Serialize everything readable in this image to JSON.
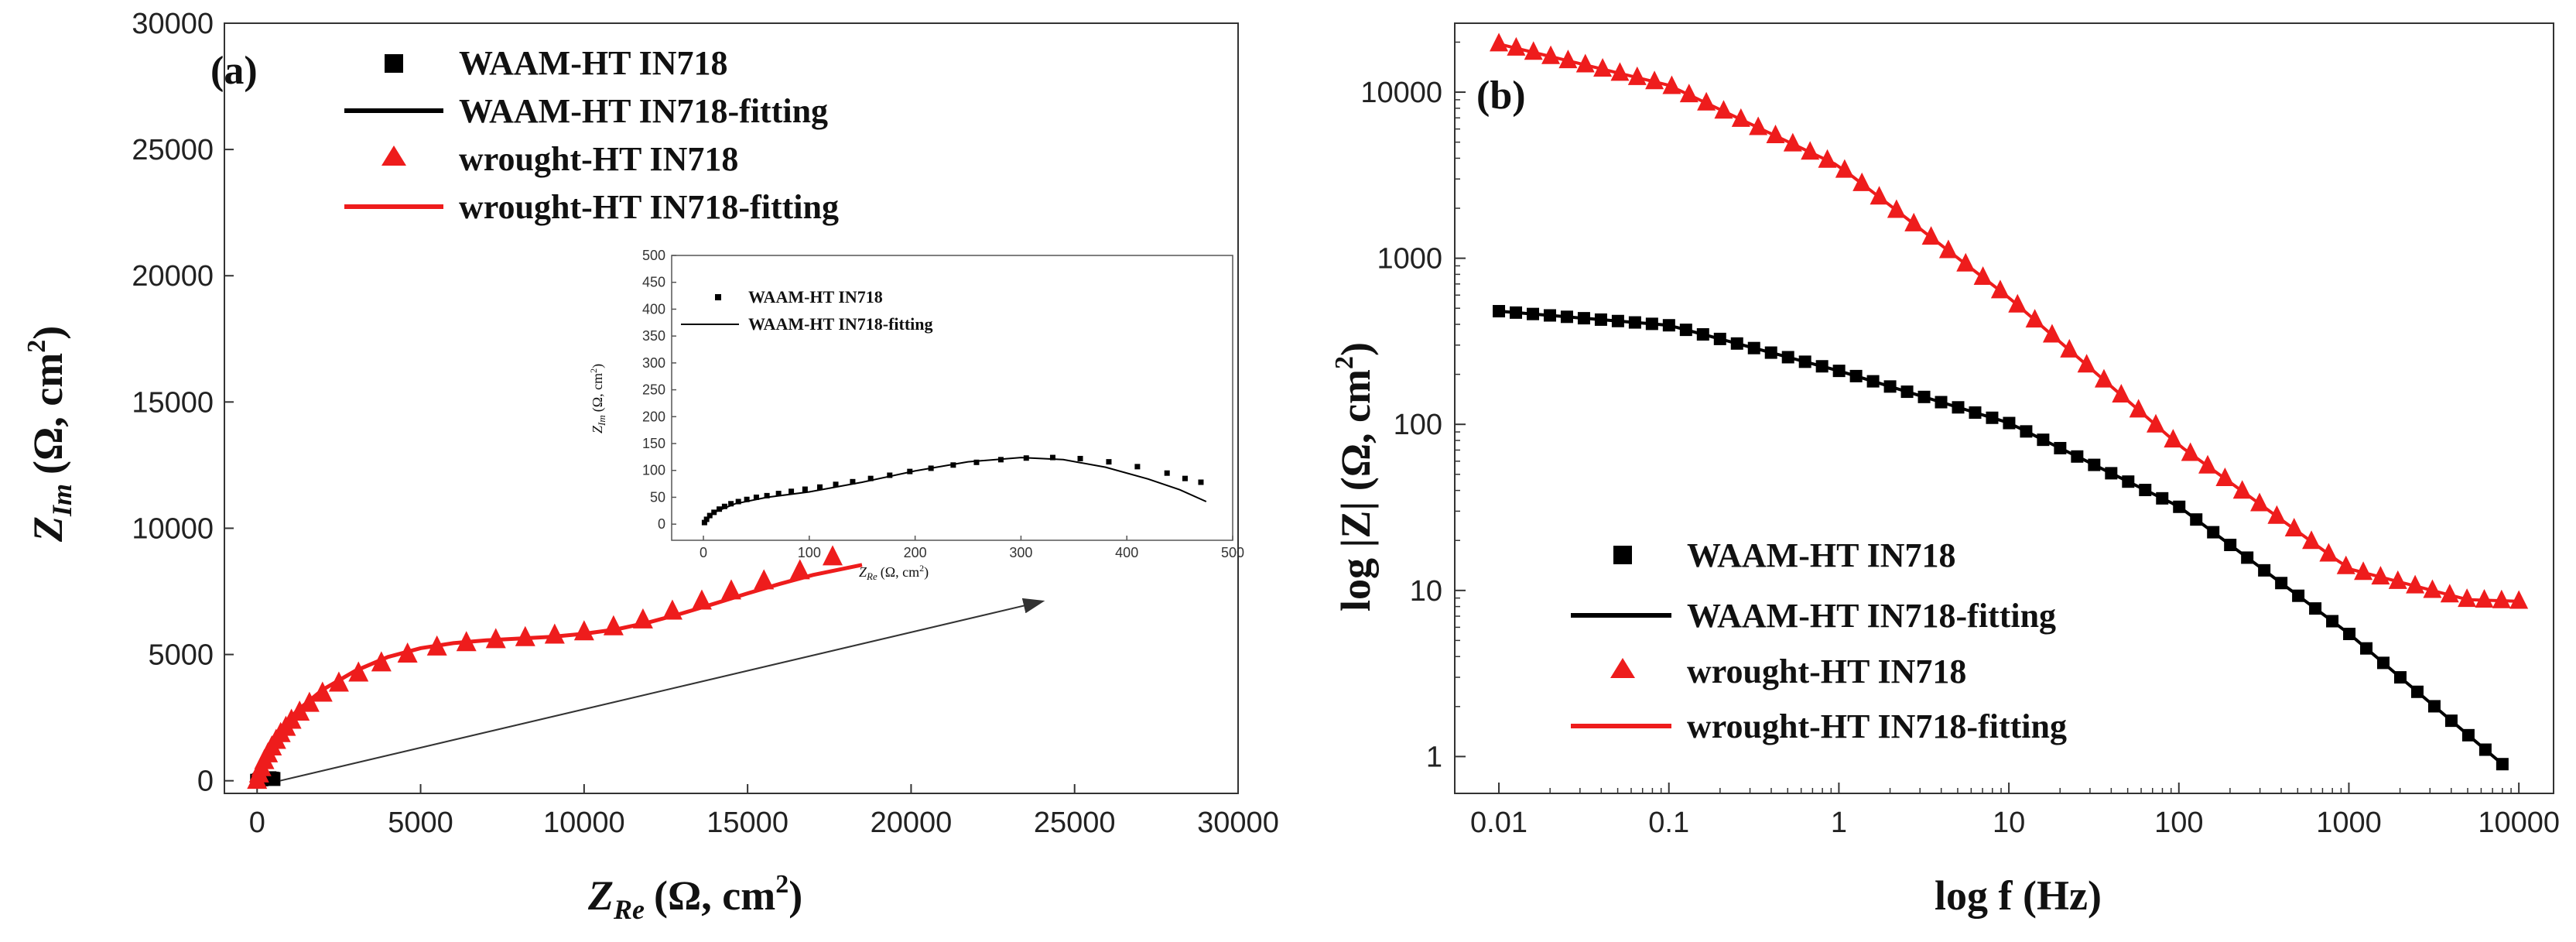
{
  "chart_data": [
    {
      "id": "a",
      "type": "scatter",
      "panel_label": "(a)",
      "xlabel_main": "Z",
      "xlabel_sub": "Re",
      "xlabel_units": "(Ω, cm",
      "ylabel_main": "Z",
      "ylabel_sub": "Im",
      "ylabel_units": "(Ω, cm",
      "unit_sup": "2",
      "unit_close": ")",
      "xlim": [
        -1000,
        30000
      ],
      "ylim": [
        -500,
        30000
      ],
      "xticks": [
        0,
        5000,
        10000,
        15000,
        20000,
        25000,
        30000
      ],
      "yticks": [
        0,
        5000,
        10000,
        15000,
        20000,
        25000,
        30000
      ],
      "legend": [
        "WAAM-HT IN718",
        "WAAM-HT IN718-fitting",
        "wrought-HT IN718",
        "wrought-HT IN718-fitting"
      ],
      "series": [
        {
          "name": "WAAM-HT IN718",
          "marker": "square",
          "x": [
            0,
            60,
            130,
            210,
            300,
            380,
            450,
            500
          ],
          "y": [
            0,
            30,
            55,
            80,
            95,
            100,
            85,
            70
          ]
        },
        {
          "name": "WAAM-HT IN718-fitting",
          "marker": "line",
          "x": [
            0,
            120,
            250,
            380,
            480
          ],
          "y": [
            0,
            70,
            110,
            100,
            40
          ]
        },
        {
          "name": "wrought-HT IN718",
          "marker": "triangle",
          "x": [
            0,
            60,
            130,
            220,
            330,
            450,
            580,
            720,
            880,
            1050,
            1300,
            1600,
            2000,
            2500,
            3100,
            3800,
            4600,
            5500,
            6400,
            7300,
            8200,
            9100,
            10000,
            10900,
            11800,
            12700,
            13600,
            14500,
            15500,
            16600,
            17600
          ],
          "y": [
            0,
            250,
            500,
            780,
            1050,
            1320,
            1580,
            1850,
            2100,
            2380,
            2700,
            3050,
            3450,
            3850,
            4250,
            4650,
            5000,
            5280,
            5450,
            5570,
            5650,
            5750,
            5880,
            6080,
            6350,
            6700,
            7100,
            7500,
            7900,
            8300,
            8850
          ]
        },
        {
          "name": "wrought-HT IN718-fitting",
          "marker": "line",
          "x": [
            0,
            300,
            700,
            1200,
            2000,
            3000,
            4000,
            5000,
            6000,
            7000,
            8000,
            9000,
            10000,
            11000,
            12000,
            13000,
            14000,
            15000,
            16000,
            17000,
            18500
          ],
          "y": [
            0,
            950,
            1900,
            2750,
            3600,
            4350,
            4900,
            5250,
            5450,
            5560,
            5630,
            5700,
            5820,
            6000,
            6280,
            6630,
            7020,
            7420,
            7800,
            8150,
            8550
          ]
        }
      ],
      "arrow": {
        "from": [
          700,
          0
        ],
        "to": [
          24000,
          7100
        ]
      },
      "inset": {
        "xlabel_main": "Z",
        "xlabel_sub": "Re",
        "xlabel_units": "(Ω, cm",
        "ylabel_main": "Z",
        "ylabel_sub": "Im",
        "ylabel_units": "(Ω, cm",
        "unit_sup": "2",
        "unit_close": ")",
        "xlim": [
          -30,
          500
        ],
        "ylim": [
          -30,
          500
        ],
        "xticks": [
          0,
          100,
          200,
          300,
          400,
          500
        ],
        "yticks": [
          0,
          50,
          100,
          150,
          200,
          250,
          300,
          350,
          400,
          450,
          500
        ],
        "legend": [
          "WAAM-HT IN718",
          "WAAM-HT IN718-fitting"
        ],
        "series": [
          {
            "name": "WAAM-HT IN718",
            "marker": "square",
            "x": [
              1,
              3,
              6,
              10,
              15,
              20,
              26,
              33,
              41,
              50,
              60,
              71,
              83,
              96,
              110,
              125,
              141,
              158,
              176,
              195,
              215,
              236,
              258,
              281,
              305,
              330,
              356,
              383,
              410,
              438,
              455,
              470
            ],
            "y": [
              3,
              9,
              16,
              22,
              28,
              33,
              38,
              42,
              46,
              50,
              53,
              57,
              61,
              65,
              69,
              74,
              79,
              85,
              91,
              98,
              104,
              110,
              115,
              120,
              123,
              124,
              122,
              116,
              107,
              95,
              85,
              78
            ]
          },
          {
            "name": "WAAM-HT IN718-fitting",
            "marker": "line",
            "x": [
              0,
              10,
              30,
              60,
              100,
              150,
              200,
              250,
              300,
              340,
              380,
              420,
              450,
              475
            ],
            "y": [
              0,
              22,
              38,
              50,
              60,
              78,
              99,
              116,
              124,
              120,
              106,
              84,
              64,
              42
            ]
          }
        ]
      }
    },
    {
      "id": "b",
      "type": "scatter",
      "panel_label": "(b)",
      "xlabel": "log f (Hz)",
      "ylabel_main": "log |Z| (Ω, cm",
      "unit_sup": "2",
      "unit_close": ")",
      "xscale": "log",
      "yscale": "log",
      "xlim": [
        0.0055,
        16000
      ],
      "ylim": [
        0.6,
        26000
      ],
      "xticks": [
        0.01,
        0.1,
        1,
        10,
        100,
        1000,
        10000
      ],
      "xtick_labels": [
        "0.01",
        "0.1",
        "1",
        "10",
        "100",
        "1000",
        "10000"
      ],
      "yticks": [
        1,
        10,
        100,
        1000,
        10000
      ],
      "ytick_labels": [
        "1",
        "10",
        "100",
        "1000",
        "10000"
      ],
      "legend": [
        "WAAM-HT IN718",
        "WAAM-HT IN718-fitting",
        "wrought-HT IN718",
        "wrought-HT IN718-fitting"
      ],
      "series": [
        {
          "name": "WAAM-HT IN718",
          "marker": "square",
          "x": [
            0.01,
            0.1,
            1,
            10,
            100,
            1000,
            8000
          ],
          "y": [
            480,
            395,
            210,
            102,
            32,
            5.5,
            0.9
          ]
        },
        {
          "name": "WAAM-HT IN718-fitting",
          "marker": "line",
          "x": [
            0.01,
            0.1,
            1,
            10,
            100,
            1000,
            8000
          ],
          "y": [
            480,
            395,
            210,
            102,
            32,
            5.5,
            0.9
          ]
        },
        {
          "name": "wrought-HT IN718",
          "marker": "triangle",
          "x": [
            0.01,
            0.1,
            1,
            10,
            100,
            1000,
            5000,
            10000
          ],
          "y": [
            19500,
            11000,
            3600,
            580,
            75,
            13.5,
            8.8,
            8.6
          ]
        },
        {
          "name": "wrought-HT IN718-fitting",
          "marker": "line",
          "x": [
            0.01,
            0.1,
            1,
            10,
            100,
            1000,
            5000,
            10000
          ],
          "y": [
            19500,
            11000,
            3600,
            580,
            75,
            13.5,
            8.8,
            8.6
          ]
        }
      ]
    }
  ],
  "colors": {
    "black": "#000000",
    "red": "#ee1c1c",
    "axis": "#333333"
  }
}
